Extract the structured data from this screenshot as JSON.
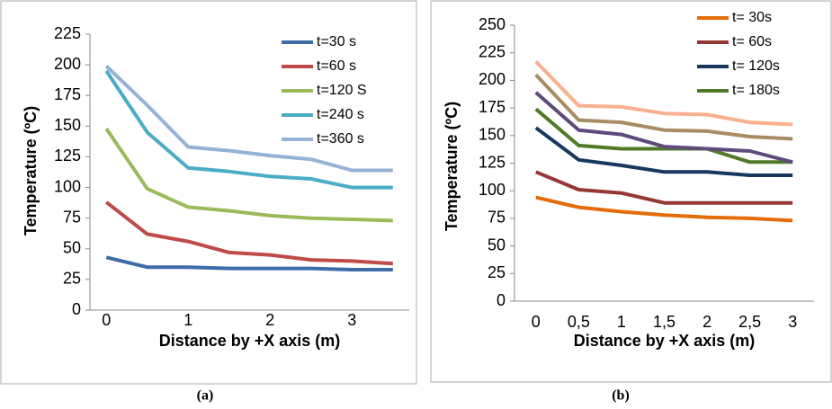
{
  "chart_data": [
    {
      "type": "line",
      "caption": "(a)",
      "ylabel": "Temperature (ºC)",
      "xlabel": "Distance by +X axis (m)",
      "x": [
        0,
        0.5,
        1,
        1.5,
        2,
        2.5,
        3,
        3.5
      ],
      "xlim": [
        -0.2,
        3.7
      ],
      "xticks": [
        0,
        1,
        2,
        3
      ],
      "ylim": [
        0,
        225
      ],
      "yticks": [
        0,
        25,
        50,
        75,
        100,
        125,
        150,
        175,
        200,
        225
      ],
      "series": [
        {
          "name": "t=30 s",
          "color": "#3e6ca9",
          "values": [
            43,
            35,
            35,
            34,
            34,
            34,
            33,
            33
          ]
        },
        {
          "name": "t=60 s",
          "color": "#be4b48",
          "values": [
            88,
            62,
            56,
            47,
            45,
            41,
            40,
            38
          ]
        },
        {
          "name": "t=120 S",
          "color": "#9bbb59",
          "values": [
            148,
            99,
            84,
            81,
            77,
            75,
            74,
            73
          ]
        },
        {
          "name": "t=240 s",
          "color": "#4bacc6",
          "values": [
            195,
            145,
            116,
            113,
            109,
            107,
            100,
            100
          ]
        },
        {
          "name": "t=360 s",
          "color": "#95b3d7",
          "values": [
            199,
            167,
            133,
            130,
            126,
            123,
            114,
            114
          ]
        }
      ]
    },
    {
      "type": "line",
      "caption": "(b)",
      "ylabel": "Temperature (ºC)",
      "xlabel": "Distance by +X axis (m)",
      "categories": [
        "0",
        "0,5",
        "1",
        "1,5",
        "2",
        "2,5",
        "3"
      ],
      "ylim": [
        0,
        250
      ],
      "yticks": [
        0,
        25,
        50,
        75,
        100,
        125,
        150,
        175,
        200,
        225,
        250
      ],
      "series": [
        {
          "name": "t= 30s",
          "color": "#e46c0a",
          "values": [
            94,
            85,
            81,
            78,
            76,
            75,
            73
          ]
        },
        {
          "name": "t= 60s",
          "color": "#953735",
          "values": [
            117,
            101,
            98,
            89,
            89,
            89,
            89
          ]
        },
        {
          "name": "t= 120s",
          "color": "#17375e",
          "values": [
            157,
            128,
            123,
            117,
            117,
            114,
            114
          ]
        },
        {
          "name": "t= 180s",
          "color": "#4f7a28",
          "values": [
            174,
            141,
            138,
            138,
            138,
            126,
            126
          ]
        },
        {
          "name": null,
          "color": "#604a7b",
          "values": [
            189,
            155,
            151,
            140,
            138,
            136,
            126
          ]
        },
        {
          "name": null,
          "color": "#a88c64",
          "values": [
            205,
            164,
            162,
            155,
            154,
            149,
            147
          ]
        },
        {
          "name": null,
          "color": "#fab08f",
          "values": [
            217,
            177,
            176,
            170,
            169,
            162,
            160
          ]
        }
      ]
    }
  ]
}
